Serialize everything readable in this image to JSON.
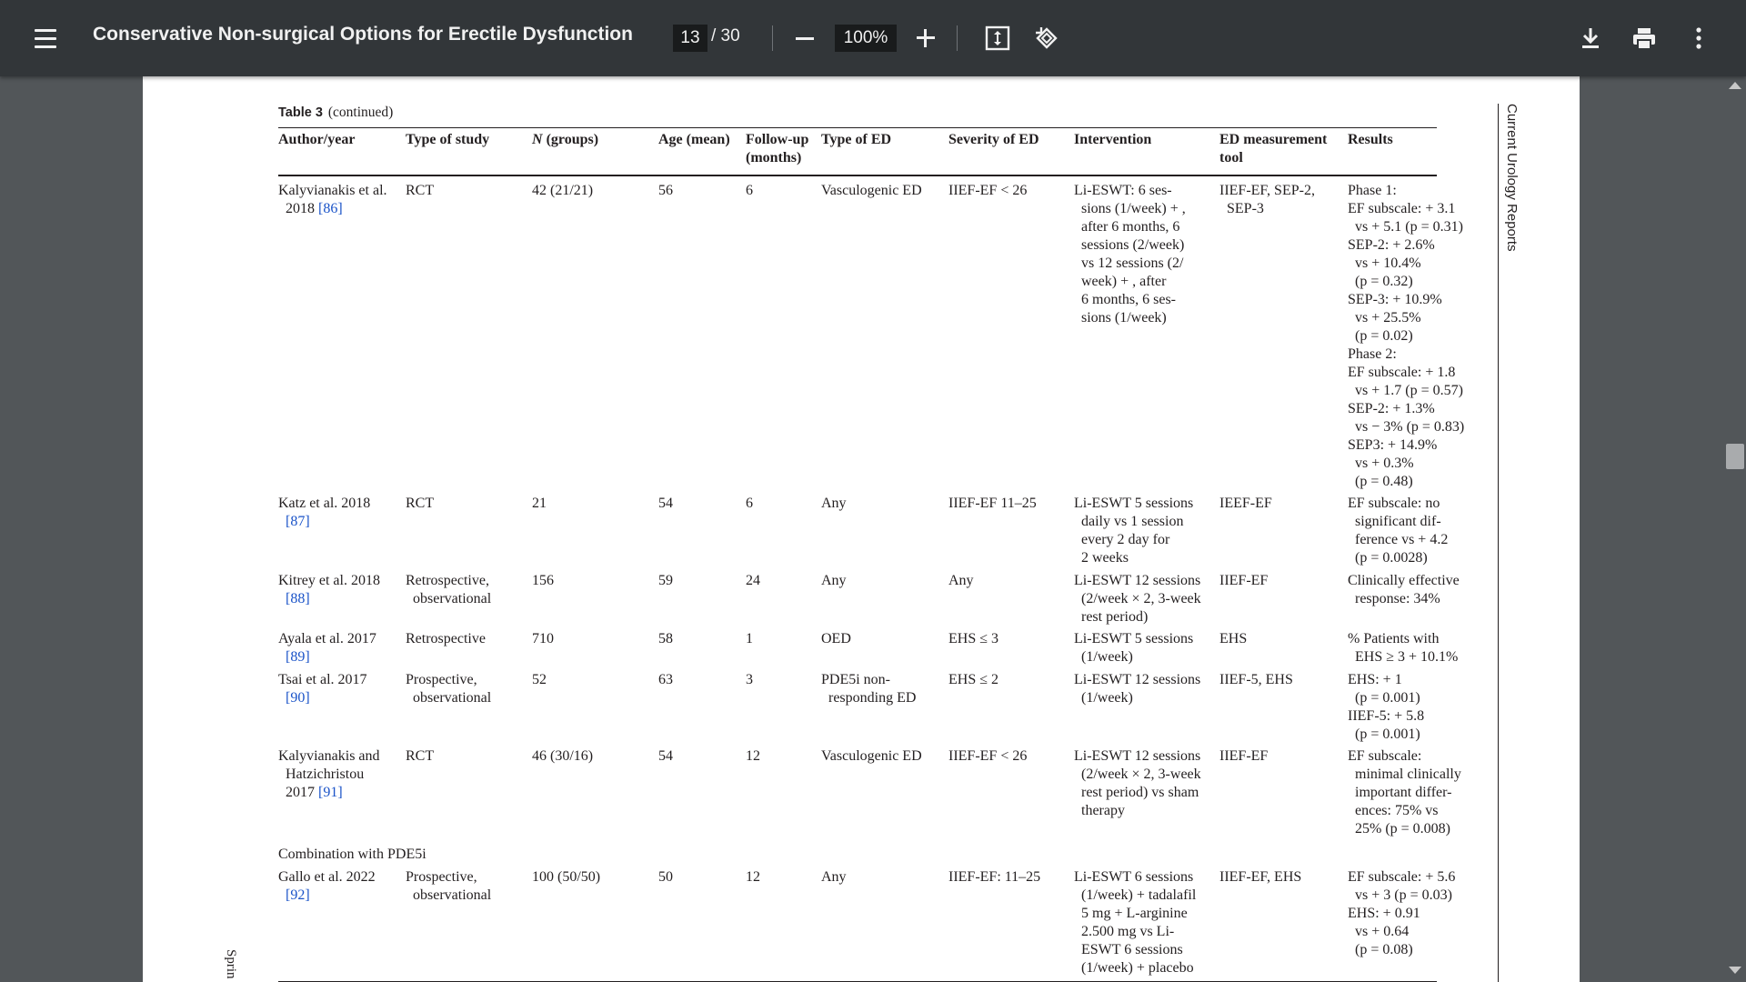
{
  "toolbar": {
    "title": "Conservative Non-surgical Options for Erectile Dysfunction",
    "current_page": "13",
    "total_pages": "/ 30",
    "zoom": "100%"
  },
  "document": {
    "caption_label": "Table 3",
    "caption_text": "(continued)",
    "journal": "Current Urology Reports",
    "publisher_fragment": "Sprin",
    "headers": {
      "author": "Author/year",
      "study": "Type of study",
      "n_italic": "N",
      "n_rest": " (groups)",
      "age": "Age (mean)",
      "followup_1": "Follow-up",
      "followup_2": "(months)",
      "ed_type": "Type of ED",
      "severity": "Severity of ED",
      "intervention": "Intervention",
      "tool_1": "ED measurement",
      "tool_2": "tool",
      "results": "Results"
    },
    "rows": [
      {
        "author": "Kalyvianakis et al.\n  2018 ",
        "ref": "[86]",
        "study": "RCT",
        "n": "42 (21/21)",
        "age": "56",
        "followup": "6",
        "ed_type": "Vasculogenic ED",
        "severity": "IIEF-EF < 26",
        "intervention": "Li-ESWT: 6 ses-\n  sions (1/week) + ,\n  after 6 months, 6\n  sessions (2/week)\n  vs 12 sessions (2/\n  week) + , after\n  6 months, 6 ses-\n  sions (1/week)",
        "tool": "IIEF-EF, SEP-2,\n  SEP-3",
        "results": "Phase 1:\nEF subscale: + 3.1\n  vs + 5.1 (p = 0.31)\nSEP-2: + 2.6%\n  vs + 10.4%\n  (p = 0.32)\nSEP-3: + 10.9%\n  vs + 25.5%\n  (p = 0.02)\nPhase 2:\nEF subscale: + 1.8\n  vs + 1.7 (p = 0.57)\nSEP-2: + 1.3%\n  vs − 3% (p = 0.83)\nSEP3: + 14.9%\n  vs + 0.3%\n  (p = 0.48)"
      },
      {
        "author": "Katz et al. 2018\n  ",
        "ref": "[87]",
        "study": "RCT",
        "n": "21",
        "age": "54",
        "followup": "6",
        "ed_type": "Any",
        "severity": "IIEF-EF 11–25",
        "intervention": "Li-ESWT 5 sessions\n  daily vs 1 session\n  every 2 day for\n  2 weeks",
        "tool": "IEEF-EF",
        "results": "EF subscale: no\n  significant dif-\n  ference vs + 4.2\n  (p = 0.0028)"
      },
      {
        "author": "Kitrey et al. 2018\n  ",
        "ref": "[88]",
        "study": "Retrospective,\n  observational",
        "n": "156",
        "age": "59",
        "followup": "24",
        "ed_type": "Any",
        "severity": "Any",
        "intervention": "Li-ESWT 12 sessions\n  (2/week × 2, 3-week\n  rest period)",
        "tool": "IIEF-EF",
        "results": "Clinically effective\n  response: 34%"
      },
      {
        "author": "Ayala et al. 2017\n  ",
        "ref": "[89]",
        "study": "Retrospective",
        "n": "710",
        "age": "58",
        "followup": "1",
        "ed_type": "OED",
        "severity": "EHS ≤ 3",
        "intervention": "Li-ESWT 5 sessions\n  (1/week)",
        "tool": "EHS",
        "results": "% Patients with\n  EHS ≥ 3 + 10.1%"
      },
      {
        "author": "Tsai et al. 2017\n  ",
        "ref": "[90]",
        "study": "Prospective,\n  observational",
        "n": "52",
        "age": "63",
        "followup": "3",
        "ed_type": "PDE5i non-\n  responding ED",
        "severity": "EHS ≤ 2",
        "intervention": "Li-ESWT 12 sessions\n  (1/week)",
        "tool": "IIEF-5, EHS",
        "results": "EHS: + 1\n  (p = 0.001)\nIIEF-5: + 5.8\n  (p = 0.001)"
      },
      {
        "author": "Kalyvianakis and\n  Hatzichristou\n  2017 ",
        "ref": "[91]",
        "study": "RCT",
        "n": "46 (30/16)",
        "age": "54",
        "followup": "12",
        "ed_type": "Vasculogenic ED",
        "severity": "IIEF-EF < 26",
        "intervention": "Li-ESWT 12 sessions\n  (2/week × 2, 3-week\n  rest period) vs sham\n  therapy",
        "tool": "IIEF-EF",
        "results": "EF subscale:\n  minimal clinically\n  important differ-\n  ences: 75% vs\n  25% (p = 0.008)"
      },
      {
        "section": "Combination with PDE5i"
      },
      {
        "author": "Gallo et al. 2022\n  ",
        "ref": "[92]",
        "study": "Prospective,\n  observational",
        "n": "100 (50/50)",
        "age": "50",
        "followup": "12",
        "ed_type": "Any",
        "severity": "IIEF-EF: 11–25",
        "intervention": "Li-ESWT 6 sessions\n  (1/week) + tadalafil\n  5 mg + L-arginine\n  2.500 mg vs Li-\n  ESWT 6 sessions\n  (1/week) + placebo",
        "tool": "IIEF-EF, EHS",
        "results": "EF subscale: + 5.6\n  vs + 3 (p = 0.03)\nEHS: + 0.91\n  vs + 0.64\n  (p = 0.08)"
      }
    ]
  }
}
